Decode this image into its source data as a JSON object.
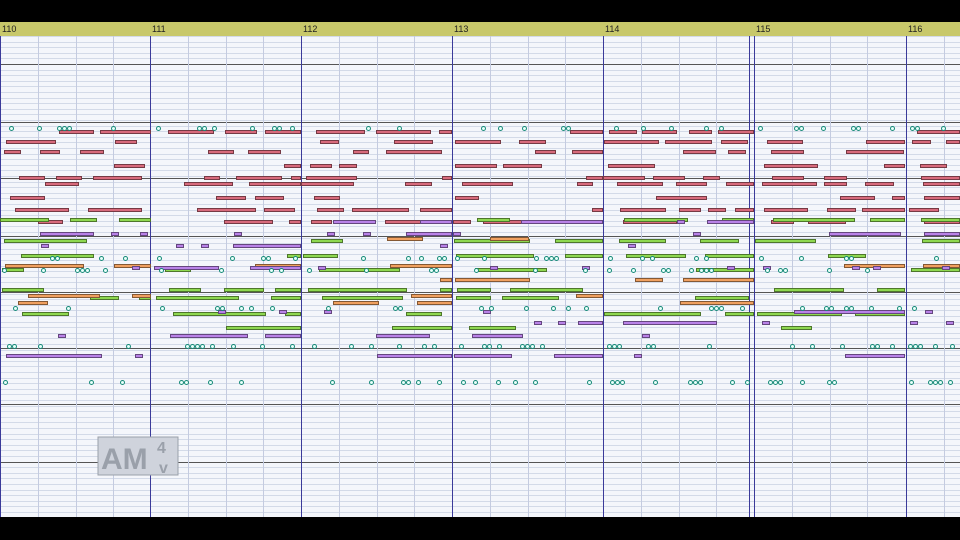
{
  "app": {
    "view": "piano-roll",
    "colors": {
      "ruler": "#c8c86a",
      "background": "#f4f6fb",
      "bar_line": "#3a3a9a",
      "red_track": "#d86a7c",
      "green_track": "#8ed850",
      "orange_track": "#f0a060",
      "purple_track": "#b982e8",
      "drum_hits": "#2eb8a0"
    }
  },
  "ruler": {
    "measures": [
      "110",
      "111",
      "112",
      "113",
      "114",
      "115",
      "116"
    ]
  },
  "watermark": {
    "text": "AM",
    "superscript": "4",
    "subscript": "v"
  }
}
